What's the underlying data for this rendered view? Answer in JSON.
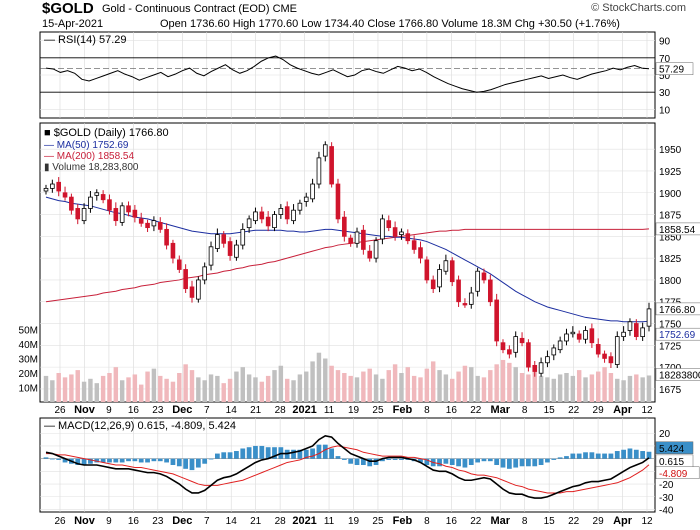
{
  "header": {
    "symbol": "$GOLD",
    "name": "Gold - Continuous Contract (EOD) CME",
    "date": "15-Apr-2021",
    "quote": "Open 1736.60  High 1770.60  Low 1734.40  Close 1766.80  Volume 18.3M  Chg +30.50 (+1.76%)",
    "credit": "© StockCharts.com"
  },
  "chart_data": [
    {
      "type": "line",
      "panel": "rsi",
      "label": "RSI(14) 57.29",
      "ylim": [
        0,
        100
      ],
      "y_ticks": [
        "90",
        "70",
        "50",
        "30",
        "10"
      ],
      "reference_lines": [
        70,
        30
      ],
      "last_value": "57.29",
      "series": [
        {
          "name": "RSI(14)",
          "values": [
            58,
            57,
            53,
            55,
            52,
            45,
            43,
            46,
            49,
            52,
            55,
            51,
            48,
            44,
            47,
            50,
            53,
            48,
            51,
            55,
            58,
            52,
            49,
            54,
            58,
            62,
            56,
            52,
            55,
            60,
            66,
            70,
            72,
            68,
            62,
            58,
            55,
            52,
            50,
            53,
            56,
            52,
            48,
            50,
            55,
            57,
            54,
            52,
            56,
            60,
            58,
            55,
            57,
            53,
            48,
            44,
            40,
            37,
            34,
            32,
            30,
            31,
            33,
            36,
            39,
            41,
            43,
            45,
            47,
            49,
            46,
            48,
            50,
            47,
            45,
            48,
            51,
            53,
            55,
            58,
            56,
            59,
            61,
            58,
            57.29
          ]
        }
      ]
    },
    {
      "type": "candlestick",
      "panel": "price",
      "label": "$GOLD (Daily) 1766.80",
      "ylim": [
        1660,
        1980
      ],
      "y_ticks": [
        "1950",
        "1925",
        "1900",
        "1875",
        "1850",
        "1825",
        "1800",
        "1775",
        "1750",
        "1725",
        "1700",
        "1675"
      ],
      "x_labels": [
        "26",
        "Nov",
        "9",
        "16",
        "23",
        "Dec",
        "7",
        "14",
        "21",
        "28",
        "2021",
        "11",
        "19",
        "25",
        "Feb",
        "8",
        "16",
        "22",
        "Mar",
        "8",
        "15",
        "22",
        "29",
        "Apr",
        "12"
      ],
      "legend": [
        "MA(50) 1752.69",
        "MA(200) 1858.54",
        "Volume 18,283,800"
      ],
      "last_labels": {
        "close": "1766.80",
        "ma50": "1752.69",
        "ma200": "1858.54",
        "volume": "18283800"
      },
      "close": [
        1905,
        1910,
        1902,
        1895,
        1880,
        1870,
        1882,
        1895,
        1900,
        1892,
        1880,
        1868,
        1885,
        1878,
        1872,
        1865,
        1860,
        1868,
        1858,
        1840,
        1825,
        1812,
        1790,
        1780,
        1800,
        1815,
        1838,
        1852,
        1842,
        1828,
        1840,
        1858,
        1870,
        1878,
        1870,
        1862,
        1875,
        1882,
        1870,
        1880,
        1888,
        1895,
        1910,
        1940,
        1955,
        1910,
        1870,
        1850,
        1842,
        1855,
        1835,
        1825,
        1845,
        1870,
        1860,
        1850,
        1855,
        1845,
        1835,
        1825,
        1800,
        1790,
        1812,
        1822,
        1798,
        1775,
        1772,
        1785,
        1810,
        1800,
        1775,
        1730,
        1720,
        1715,
        1735,
        1728,
        1700,
        1695,
        1705,
        1712,
        1722,
        1730,
        1738,
        1740,
        1732,
        1742,
        1728,
        1715,
        1710,
        1705,
        1735,
        1740,
        1752,
        1735,
        1745,
        1766.8
      ],
      "volume_m": [
        18,
        15,
        20,
        17,
        19,
        22,
        14,
        16,
        13,
        18,
        20,
        24,
        15,
        17,
        19,
        12,
        21,
        23,
        18,
        16,
        14,
        20,
        26,
        22,
        17,
        15,
        19,
        18,
        13,
        16,
        21,
        24,
        19,
        17,
        14,
        18,
        22,
        25,
        16,
        15,
        19,
        21,
        28,
        34,
        30,
        25,
        22,
        20,
        18,
        17,
        21,
        23,
        19,
        16,
        22,
        26,
        20,
        24,
        18,
        17,
        23,
        28,
        22,
        19,
        16,
        21,
        25,
        24,
        18,
        17,
        22,
        26,
        29,
        27,
        24,
        20,
        19,
        21,
        18,
        17,
        16,
        19,
        20,
        18,
        22,
        17,
        19,
        21,
        24,
        20,
        16,
        15,
        18,
        19,
        17,
        18.3
      ],
      "ma50": [
        1895,
        1893,
        1891,
        1890,
        1888,
        1887,
        1886,
        1885,
        1883,
        1881,
        1879,
        1877,
        1876,
        1874,
        1872,
        1871,
        1870,
        1868,
        1866,
        1864,
        1862,
        1860,
        1858,
        1856,
        1855,
        1854,
        1853,
        1853,
        1853,
        1853,
        1854,
        1855,
        1856,
        1857,
        1857,
        1857,
        1857,
        1857,
        1856,
        1856,
        1855,
        1855,
        1856,
        1857,
        1858,
        1858,
        1857,
        1856,
        1855,
        1854,
        1853,
        1852,
        1851,
        1850,
        1850,
        1849,
        1849,
        1848,
        1847,
        1846,
        1844,
        1841,
        1838,
        1835,
        1831,
        1827,
        1823,
        1819,
        1815,
        1811,
        1807,
        1802,
        1797,
        1792,
        1787,
        1783,
        1779,
        1775,
        1772,
        1769,
        1767,
        1765,
        1763,
        1761,
        1759,
        1757,
        1756,
        1755,
        1754,
        1753,
        1753,
        1752,
        1752,
        1752,
        1752,
        1752.69
      ],
      "ma200": [
        1775,
        1776,
        1777,
        1778,
        1779,
        1780,
        1781,
        1782,
        1783,
        1785,
        1786,
        1787,
        1789,
        1790,
        1791,
        1793,
        1794,
        1795,
        1797,
        1798,
        1799,
        1800,
        1802,
        1803,
        1804,
        1806,
        1807,
        1808,
        1810,
        1811,
        1813,
        1814,
        1816,
        1817,
        1818,
        1820,
        1821,
        1823,
        1825,
        1827,
        1829,
        1831,
        1833,
        1835,
        1837,
        1838,
        1840,
        1841,
        1842,
        1843,
        1844,
        1845,
        1846,
        1847,
        1848,
        1849,
        1850,
        1851,
        1852,
        1853,
        1854,
        1855,
        1856,
        1856,
        1857,
        1857,
        1858,
        1858,
        1858,
        1858,
        1858,
        1858,
        1858,
        1858,
        1858,
        1858,
        1858,
        1858,
        1858,
        1858,
        1858,
        1858,
        1858,
        1858,
        1858,
        1858,
        1858,
        1858,
        1858,
        1858,
        1858,
        1858,
        1858,
        1858,
        1858,
        1858.54
      ]
    },
    {
      "type": "bar+line",
      "panel": "macd",
      "label": "MACD(12,26,9) 0.615, -4.809, 5.424",
      "ylim": [
        -42,
        32
      ],
      "y_ticks": [
        "20",
        "10",
        "0",
        "-10",
        "-20",
        "-30",
        "-40"
      ],
      "last_labels": {
        "macd": "0.615",
        "signal": "-4.809",
        "histogram": "5.424"
      },
      "macd": [
        5,
        4,
        2,
        0,
        -2,
        -4,
        -5,
        -5,
        -5,
        -6,
        -7,
        -8,
        -8,
        -8,
        -9,
        -10,
        -11,
        -11,
        -12,
        -14,
        -17,
        -20,
        -24,
        -27,
        -27,
        -25,
        -21,
        -17,
        -15,
        -14,
        -12,
        -9,
        -6,
        -3,
        -1,
        0,
        2,
        4,
        4,
        5,
        6,
        8,
        10,
        15,
        18,
        17,
        12,
        8,
        4,
        2,
        0,
        -2,
        -2,
        0,
        1,
        1,
        1,
        0,
        -1,
        -3,
        -6,
        -9,
        -10,
        -10,
        -12,
        -15,
        -17,
        -17,
        -16,
        -15,
        -16,
        -20,
        -24,
        -27,
        -28,
        -28,
        -30,
        -31,
        -31,
        -30,
        -28,
        -26,
        -24,
        -22,
        -21,
        -19,
        -18,
        -18,
        -17,
        -16,
        -13,
        -10,
        -7,
        -5,
        -3,
        0.615
      ],
      "signal": [
        4,
        4,
        3,
        3,
        2,
        1,
        0,
        -1,
        -2,
        -3,
        -4,
        -5,
        -5,
        -6,
        -7,
        -7,
        -8,
        -9,
        -10,
        -11,
        -12,
        -14,
        -16,
        -18,
        -20,
        -21,
        -21,
        -21,
        -20,
        -19,
        -18,
        -17,
        -15,
        -13,
        -11,
        -9,
        -7,
        -5,
        -3,
        -2,
        -1,
        1,
        2,
        4,
        7,
        9,
        10,
        9,
        8,
        7,
        5,
        4,
        3,
        2,
        2,
        2,
        2,
        1,
        1,
        0,
        -1,
        -3,
        -4,
        -6,
        -7,
        -9,
        -10,
        -12,
        -13,
        -13,
        -14,
        -15,
        -17,
        -19,
        -21,
        -22,
        -24,
        -25,
        -26,
        -27,
        -27,
        -27,
        -26,
        -26,
        -25,
        -24,
        -23,
        -22,
        -21,
        -20,
        -19,
        -17,
        -15,
        -12,
        -9,
        -4.809
      ]
    }
  ]
}
